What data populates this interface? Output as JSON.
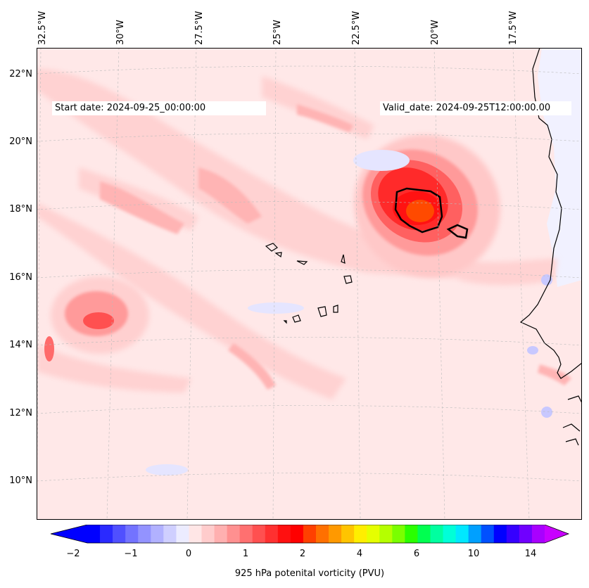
{
  "map": {
    "lon_labels": [
      "32.5°W",
      "30°W",
      "27.5°W",
      "25°W",
      "22.5°W",
      "20°W",
      "17.5°W"
    ],
    "lat_labels": [
      "22°N",
      "20°N",
      "18°N",
      "16°N",
      "14°N",
      "12°N",
      "10°N"
    ],
    "start_date": "Start date: 2024-09-25_00:00:00",
    "valid_date": "Valid_date: 2024-09-25T12:00:00.00",
    "colorbar": {
      "ticks": [
        "−2",
        "−1",
        "0",
        "1",
        "2",
        "4",
        "6",
        "10",
        "14"
      ],
      "label": "925 hPa potenital vorticity (PVU)",
      "colors": [
        "#0000ff",
        "#2a2aff",
        "#5050ff",
        "#7373ff",
        "#9393ff",
        "#b1b1ff",
        "#cfcfff",
        "#ececff",
        "#ffe6e6",
        "#ffcccc",
        "#ffb0b0",
        "#ff9090",
        "#ff7070",
        "#ff5050",
        "#ff3030",
        "#ff1010",
        "#ff0000",
        "#ff4000",
        "#ff7000",
        "#ff9900",
        "#ffc400",
        "#ffee00",
        "#e5ff00",
        "#b5ff00",
        "#7aff00",
        "#2aff00",
        "#00ff50",
        "#00ffa0",
        "#00ffd8",
        "#00e8ff",
        "#00a0ff",
        "#0050ff",
        "#0000ff",
        "#3500ff",
        "#7000ff",
        "#a800ff"
      ],
      "under_color": "#0000ff",
      "over_color": "#c800ff"
    }
  }
}
